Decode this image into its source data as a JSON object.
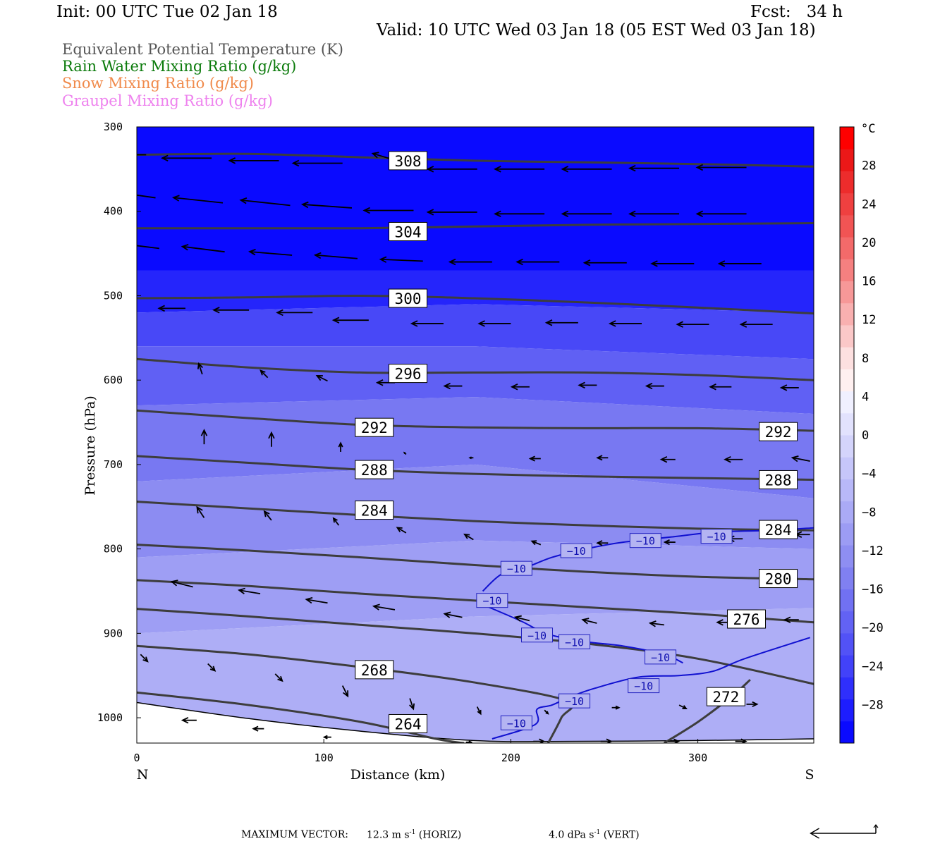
{
  "header": {
    "init": "Init: 00 UTC Tue 02 Jan 18",
    "fcst": "Fcst:   34 h",
    "valid": "Valid: 10 UTC Wed 03 Jan 18 (05 EST Wed 03 Jan 18)"
  },
  "legend": [
    {
      "text": "Equivalent Potential Temperature (K)",
      "color": "#555555"
    },
    {
      "text": "Rain Water Mixing Ratio (g/kg)",
      "color": "#0a7a0a"
    },
    {
      "text": "Snow Mixing Ratio (g/kg)",
      "color": "#f08a4b"
    },
    {
      "text": "Graupel Mixing Ratio (g/kg)",
      "color": "#ee82ee"
    }
  ],
  "footer": {
    "label": "MAXIMUM VECTOR:",
    "horiz_value": "12.3",
    "horiz_unit": "m s",
    "horiz_exp": "-1",
    "horiz_tag": "(HORIZ)",
    "vert_value": "4.0",
    "vert_unit": "dPa s",
    "vert_exp": "-1",
    "vert_tag": "(VERT)"
  },
  "chart_data": {
    "type": "heatmap",
    "title": "",
    "xlabel": "Distance (km)",
    "ylabel": "Pressure (hPa)",
    "xlim": [
      0,
      362
    ],
    "ylim": [
      300,
      1030
    ],
    "x_ticks": [
      0,
      100,
      200,
      300
    ],
    "y_ticks": [
      300,
      400,
      500,
      600,
      700,
      800,
      900,
      1000
    ],
    "x_end_labels": {
      "left": "N",
      "right": "S"
    },
    "colorbar": {
      "unit": "°C",
      "levels": [
        -32,
        -30,
        -28,
        -26,
        -24,
        -22,
        -20,
        -18,
        -16,
        -14,
        -12,
        -10,
        -8,
        -6,
        -4,
        -2,
        0,
        2,
        4,
        6,
        8,
        10,
        12,
        14,
        16,
        18,
        20,
        22,
        24,
        26,
        28,
        30,
        32
      ],
      "tick_labels": [
        "28",
        "24",
        "20",
        "16",
        "12",
        "8",
        "4",
        "0",
        "−4",
        "−8",
        "−12",
        "−16",
        "−20",
        "−24",
        "−28"
      ],
      "tick_values": [
        28,
        24,
        20,
        16,
        12,
        8,
        4,
        0,
        -4,
        -8,
        -12,
        -16,
        -20,
        -24,
        -28
      ],
      "colors": [
        "#0a0aff",
        "#1d1dfe",
        "#2f2ffc",
        "#4242f9",
        "#5252f6",
        "#6262f4",
        "#7171f2",
        "#8080f1",
        "#8e8ef2",
        "#9c9cf4",
        "#aaaaf6",
        "#b8b8f8",
        "#c6c6fa",
        "#d4d4fb",
        "#e2e2fd",
        "#f0f0ff",
        "#fff0f0",
        "#fde0e0",
        "#fbc8c8",
        "#f9b0b0",
        "#f79898",
        "#f58080",
        "#f36a6a",
        "#f15454",
        "#ef4040",
        "#ed2c2c",
        "#eb1818",
        "#ff0000"
      ]
    },
    "temperature_bands": [
      {
        "top": [
          300,
          300,
          300
        ],
        "bottom": [
          470,
          470,
          470
        ],
        "color": "#0a0aff"
      },
      {
        "top": [
          470,
          470,
          470
        ],
        "bottom": [
          520,
          510,
          520
        ],
        "color": "#2525fb"
      },
      {
        "top": [
          520,
          510,
          520
        ],
        "bottom": [
          560,
          560,
          575
        ],
        "color": "#4848f7"
      },
      {
        "top": [
          560,
          560,
          575
        ],
        "bottom": [
          630,
          620,
          640
        ],
        "color": "#6060f4"
      },
      {
        "top": [
          630,
          620,
          640
        ],
        "bottom": [
          720,
          700,
          740
        ],
        "color": "#7878f2"
      },
      {
        "top": [
          720,
          700,
          740
        ],
        "bottom": [
          810,
          790,
          800
        ],
        "color": "#8c8cf2"
      },
      {
        "top": [
          810,
          790,
          800
        ],
        "bottom": [
          900,
          880,
          870
        ],
        "color": "#9e9ef4"
      },
      {
        "top": [
          900,
          880,
          870
        ],
        "bottom": [
          1030,
          1030,
          1030
        ],
        "color": "#aeaef6"
      }
    ],
    "theta_e_contours": [
      {
        "label": "308",
        "x": [
          0,
          60,
          120,
          180,
          240,
          300,
          362
        ],
        "p": [
          333,
          332,
          336,
          340,
          342,
          344,
          347
        ]
      },
      {
        "label": "304",
        "x": [
          0,
          60,
          120,
          180,
          240,
          300,
          362
        ],
        "p": [
          420,
          420,
          420,
          418,
          416,
          415,
          414
        ]
      },
      {
        "label": "300",
        "x": [
          0,
          60,
          120,
          180,
          240,
          300,
          362
        ],
        "p": [
          503,
          502,
          500,
          503,
          508,
          514,
          521
        ]
      },
      {
        "label": "296",
        "x": [
          0,
          60,
          120,
          180,
          240,
          300,
          362
        ],
        "p": [
          575,
          585,
          591,
          591,
          591,
          594,
          600
        ]
      },
      {
        "label": "292",
        "x": [
          0,
          60,
          120,
          180,
          240,
          300,
          362
        ],
        "p": [
          636,
          645,
          653,
          656,
          657,
          657,
          660
        ]
      },
      {
        "label": "288",
        "x": [
          0,
          60,
          120,
          180,
          240,
          300,
          362
        ],
        "p": [
          690,
          698,
          706,
          711,
          714,
          716,
          718
        ]
      },
      {
        "label": "284",
        "x": [
          0,
          60,
          120,
          180,
          240,
          300,
          362
        ],
        "p": [
          744,
          752,
          760,
          767,
          772,
          776,
          778
        ]
      },
      {
        "label": "280",
        "x": [
          0,
          60,
          120,
          180,
          240,
          300,
          362
        ],
        "p": [
          795,
          802,
          810,
          819,
          827,
          833,
          836
        ]
      },
      {
        "label": "276",
        "x": [
          0,
          60,
          120,
          180,
          240,
          300,
          362
        ],
        "p": [
          837,
          844,
          853,
          861,
          869,
          877,
          887
        ]
      },
      {
        "label": "",
        "x": [
          0,
          60,
          120,
          180,
          240,
          300,
          362
        ],
        "p": [
          871,
          880,
          890,
          900,
          912,
          930,
          960
        ]
      },
      {
        "label": "268",
        "x": [
          0,
          60,
          120,
          180,
          230,
          227,
          220
        ],
        "p": [
          915,
          925,
          940,
          958,
          980,
          1000,
          1030
        ]
      },
      {
        "label": "264",
        "x": [
          0,
          60,
          120,
          160,
          175
        ],
        "p": [
          970,
          985,
          1005,
          1025,
          1030
        ]
      },
      {
        "label": "272",
        "x": [
          282,
          300,
          318,
          328
        ],
        "p": [
          1030,
          1005,
          975,
          955
        ]
      }
    ],
    "theta_e_labels": [
      {
        "text": "308",
        "x": 145,
        "p": 340
      },
      {
        "text": "304",
        "x": 145,
        "p": 424
      },
      {
        "text": "300",
        "x": 145,
        "p": 503
      },
      {
        "text": "296",
        "x": 145,
        "p": 592
      },
      {
        "text": "292",
        "x": 127,
        "p": 656
      },
      {
        "text": "292",
        "x": 343,
        "p": 661
      },
      {
        "text": "288",
        "x": 127,
        "p": 706
      },
      {
        "text": "288",
        "x": 343,
        "p": 718
      },
      {
        "text": "284",
        "x": 127,
        "p": 754
      },
      {
        "text": "284",
        "x": 343,
        "p": 777
      },
      {
        "text": "280",
        "x": 343,
        "p": 835
      },
      {
        "text": "276",
        "x": 326,
        "p": 883
      },
      {
        "text": "268",
        "x": 127,
        "p": 943
      },
      {
        "text": "264",
        "x": 145,
        "p": 1007
      },
      {
        "text": "272",
        "x": 315,
        "p": 975
      }
    ],
    "isotherm_minus10": {
      "label": "−10",
      "x": [
        190,
        213,
        214,
        222,
        232,
        245,
        268,
        290,
        308,
        325,
        360
      ],
      "p": [
        1025,
        1008,
        990,
        985,
        975,
        965,
        952,
        950,
        945,
        930,
        905
      ],
      "upper_x": [
        185,
        195,
        208,
        222,
        240,
        260,
        285,
        310,
        340,
        362
      ],
      "upper_p": [
        850,
        830,
        822,
        810,
        800,
        792,
        786,
        780,
        778,
        775
      ],
      "lower_x": [
        185,
        205,
        220,
        240,
        260,
        282,
        292
      ],
      "lower_p": [
        866,
        885,
        901,
        910,
        915,
        925,
        935
      ]
    },
    "isotherm_labels": [
      {
        "x": 203,
        "p": 1006
      },
      {
        "x": 234,
        "p": 980
      },
      {
        "x": 271,
        "p": 962
      },
      {
        "x": 280,
        "p": 928
      },
      {
        "x": 234,
        "p": 910
      },
      {
        "x": 214,
        "p": 902
      },
      {
        "x": 190,
        "p": 861
      },
      {
        "x": 203,
        "p": 823
      },
      {
        "x": 235,
        "p": 802
      },
      {
        "x": 272,
        "p": 790
      },
      {
        "x": 310,
        "p": 785
      }
    ],
    "wind_vectors": [
      {
        "x": 5,
        "p": 333,
        "u": -28,
        "w": 0
      },
      {
        "x": 40,
        "p": 337,
        "u": -28,
        "w": 0
      },
      {
        "x": 76,
        "p": 340,
        "u": -28,
        "w": 0
      },
      {
        "x": 110,
        "p": 343,
        "u": -28,
        "w": 0
      },
      {
        "x": 145,
        "p": 344,
        "u": -20,
        "w": 6
      },
      {
        "x": 182,
        "p": 350,
        "u": -28,
        "w": 0
      },
      {
        "x": 218,
        "p": 350,
        "u": -28,
        "w": 0
      },
      {
        "x": 254,
        "p": 350,
        "u": -28,
        "w": 0
      },
      {
        "x": 290,
        "p": 349,
        "u": -28,
        "w": 0
      },
      {
        "x": 326,
        "p": 348,
        "u": -28,
        "w": 0
      },
      {
        "x": 10,
        "p": 384,
        "u": -28,
        "w": 4
      },
      {
        "x": 46,
        "p": 390,
        "u": -28,
        "w": 3
      },
      {
        "x": 82,
        "p": 393,
        "u": -28,
        "w": 3
      },
      {
        "x": 115,
        "p": 396,
        "u": -28,
        "w": 2
      },
      {
        "x": 148,
        "p": 399,
        "u": -28,
        "w": 0
      },
      {
        "x": 182,
        "p": 401,
        "u": -28,
        "w": 0
      },
      {
        "x": 218,
        "p": 403,
        "u": -28,
        "w": 0
      },
      {
        "x": 254,
        "p": 403,
        "u": -28,
        "w": 0
      },
      {
        "x": 290,
        "p": 403,
        "u": -28,
        "w": 0
      },
      {
        "x": 326,
        "p": 403,
        "u": -28,
        "w": 0
      },
      {
        "x": 12,
        "p": 444,
        "u": -24,
        "w": 3
      },
      {
        "x": 47,
        "p": 448,
        "u": -24,
        "w": 3
      },
      {
        "x": 83,
        "p": 452,
        "u": -24,
        "w": 2
      },
      {
        "x": 118,
        "p": 456,
        "u": -24,
        "w": 2
      },
      {
        "x": 153,
        "p": 459,
        "u": -24,
        "w": 1
      },
      {
        "x": 190,
        "p": 460,
        "u": -24,
        "w": 0
      },
      {
        "x": 226,
        "p": 460,
        "u": -24,
        "w": 0
      },
      {
        "x": 262,
        "p": 461,
        "u": -24,
        "w": 0
      },
      {
        "x": 298,
        "p": 462,
        "u": -24,
        "w": 0
      },
      {
        "x": 334,
        "p": 462,
        "u": -24,
        "w": 0
      },
      {
        "x": 26,
        "p": 515,
        "u": -15,
        "w": 0
      },
      {
        "x": 60,
        "p": 517,
        "u": -20,
        "w": 0
      },
      {
        "x": 94,
        "p": 520,
        "u": -20,
        "w": 0
      },
      {
        "x": 124,
        "p": 529,
        "u": -20,
        "w": 0
      },
      {
        "x": 164,
        "p": 533,
        "u": -18,
        "w": 0
      },
      {
        "x": 200,
        "p": 533,
        "u": -18,
        "w": 0
      },
      {
        "x": 236,
        "p": 532,
        "u": -18,
        "w": 0
      },
      {
        "x": 270,
        "p": 533,
        "u": -18,
        "w": 0
      },
      {
        "x": 306,
        "p": 534,
        "u": -18,
        "w": 0
      },
      {
        "x": 340,
        "p": 534,
        "u": -18,
        "w": 0
      },
      {
        "x": 35,
        "p": 593,
        "u": -2,
        "w": 6
      },
      {
        "x": 70,
        "p": 597,
        "u": -4,
        "w": 4
      },
      {
        "x": 102,
        "p": 601,
        "u": -6,
        "w": 3
      },
      {
        "x": 138,
        "p": 603,
        "u": -10,
        "w": 0
      },
      {
        "x": 174,
        "p": 607,
        "u": -10,
        "w": 0
      },
      {
        "x": 210,
        "p": 608,
        "u": -10,
        "w": 0
      },
      {
        "x": 246,
        "p": 606,
        "u": -10,
        "w": 0
      },
      {
        "x": 282,
        "p": 607,
        "u": -10,
        "w": 0
      },
      {
        "x": 318,
        "p": 608,
        "u": -12,
        "w": 0
      },
      {
        "x": 354,
        "p": 609,
        "u": -10,
        "w": 0
      },
      {
        "x": 36,
        "p": 676,
        "u": 0,
        "w": 8
      },
      {
        "x": 72,
        "p": 679,
        "u": 0,
        "w": 8
      },
      {
        "x": 109,
        "p": 685,
        "u": 0,
        "w": 5
      },
      {
        "x": 144,
        "p": 688,
        "u": -1,
        "w": 1
      },
      {
        "x": 180,
        "p": 692,
        "u": -2,
        "w": 0
      },
      {
        "x": 216,
        "p": 693,
        "u": -6,
        "w": 0
      },
      {
        "x": 252,
        "p": 692,
        "u": -6,
        "w": 0
      },
      {
        "x": 288,
        "p": 694,
        "u": -8,
        "w": 0
      },
      {
        "x": 324,
        "p": 694,
        "u": -10,
        "w": 0
      },
      {
        "x": 360,
        "p": 696,
        "u": -10,
        "w": 2
      },
      {
        "x": 36,
        "p": 763,
        "u": -4,
        "w": 6
      },
      {
        "x": 72,
        "p": 766,
        "u": -4,
        "w": 5
      },
      {
        "x": 108,
        "p": 772,
        "u": -3,
        "w": 4
      },
      {
        "x": 144,
        "p": 781,
        "u": -5,
        "w": 3
      },
      {
        "x": 180,
        "p": 789,
        "u": -5,
        "w": 3
      },
      {
        "x": 216,
        "p": 795,
        "u": -5,
        "w": 2
      },
      {
        "x": 252,
        "p": 793,
        "u": -6,
        "w": 0
      },
      {
        "x": 288,
        "p": 792,
        "u": -6,
        "w": 0
      },
      {
        "x": 324,
        "p": 788,
        "u": -8,
        "w": 0
      },
      {
        "x": 360,
        "p": 783,
        "u": -8,
        "w": 0
      },
      {
        "x": 30,
        "p": 845,
        "u": -12,
        "w": 3
      },
      {
        "x": 66,
        "p": 853,
        "u": -12,
        "w": 2
      },
      {
        "x": 102,
        "p": 864,
        "u": -12,
        "w": 2
      },
      {
        "x": 138,
        "p": 872,
        "u": -12,
        "w": 2
      },
      {
        "x": 174,
        "p": 881,
        "u": -10,
        "w": 2
      },
      {
        "x": 210,
        "p": 885,
        "u": -8,
        "w": 2
      },
      {
        "x": 246,
        "p": 888,
        "u": -8,
        "w": 2
      },
      {
        "x": 282,
        "p": 890,
        "u": -8,
        "w": 1
      },
      {
        "x": 318,
        "p": 887,
        "u": -8,
        "w": 0
      },
      {
        "x": 354,
        "p": 884,
        "u": -8,
        "w": 0
      },
      {
        "x": 2,
        "p": 925,
        "u": 4,
        "w": -4
      },
      {
        "x": 38,
        "p": 936,
        "u": 4,
        "w": -4
      },
      {
        "x": 74,
        "p": 948,
        "u": 4,
        "w": -4
      },
      {
        "x": 110,
        "p": 962,
        "u": 3,
        "w": -6
      },
      {
        "x": 146,
        "p": 977,
        "u": 2,
        "w": -6
      },
      {
        "x": 182,
        "p": 987,
        "u": 2,
        "w": -4
      },
      {
        "x": 218,
        "p": 991,
        "u": 2,
        "w": -2
      },
      {
        "x": 254,
        "p": 988,
        "u": 4,
        "w": 0
      },
      {
        "x": 290,
        "p": 985,
        "u": 4,
        "w": -2
      },
      {
        "x": 326,
        "p": 984,
        "u": 6,
        "w": 0
      },
      {
        "x": 32,
        "p": 1003,
        "u": -8,
        "w": 0
      },
      {
        "x": 68,
        "p": 1013,
        "u": -6,
        "w": 0
      },
      {
        "x": 104,
        "p": 1023,
        "u": -4,
        "w": 0
      },
      {
        "x": 140,
        "p": 1028,
        "u": 0,
        "w": 0
      },
      {
        "x": 176,
        "p": 1029,
        "u": 3,
        "w": 0
      },
      {
        "x": 212,
        "p": 1028,
        "u": 6,
        "w": 0
      },
      {
        "x": 248,
        "p": 1028,
        "u": 6,
        "w": 0
      },
      {
        "x": 284,
        "p": 1028,
        "u": 6,
        "w": 0
      },
      {
        "x": 320,
        "p": 1028,
        "u": 6,
        "w": 0
      }
    ],
    "terrain": {
      "x": [
        0,
        60,
        120,
        180,
        230,
        300,
        362
      ],
      "p": [
        982,
        1001,
        1016,
        1027,
        1028,
        1027,
        1025
      ]
    },
    "reference_arrow": {
      "u": -28,
      "w": 12
    }
  }
}
